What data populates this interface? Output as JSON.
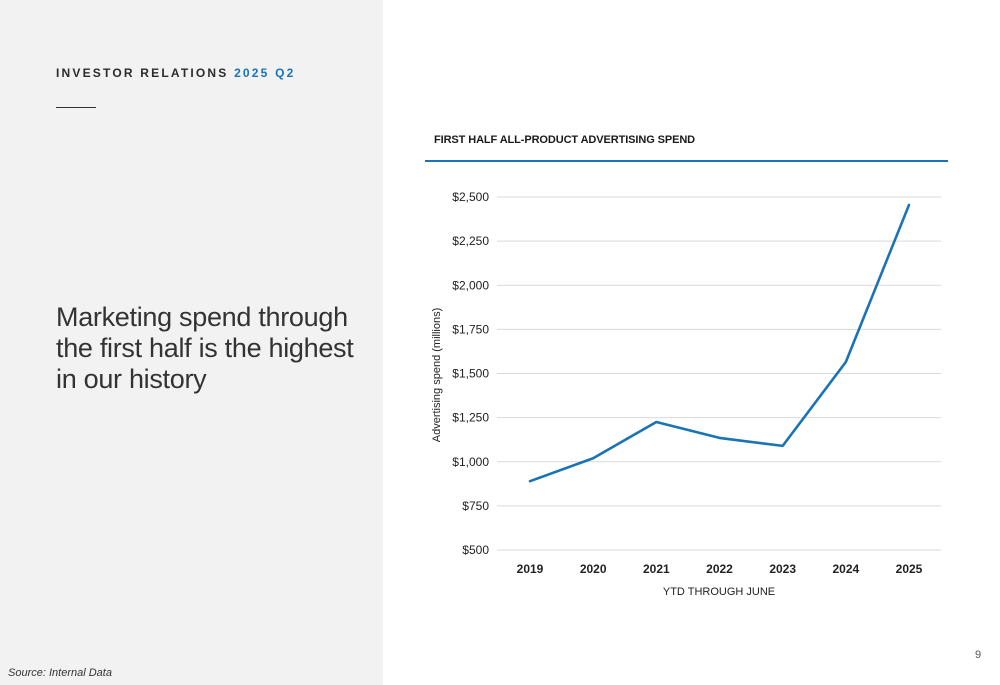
{
  "header": {
    "eyebrow_text": "INVESTOR RELATIONS",
    "eyebrow_accent": "2025 Q2"
  },
  "headline": "Marketing spend through the first half is the highest in our history",
  "footer": {
    "source": "Source: Internal Data",
    "page_number": "9"
  },
  "colors": {
    "accent": "#1a73b5",
    "panel_background": "#f2f2f2",
    "line": "#1a73b5",
    "grid": "#d9d9d9"
  },
  "chart_data": {
    "type": "line",
    "title": "FIRST HALF ALL-PRODUCT ADVERTISING SPEND",
    "xlabel": "YTD THROUGH JUNE",
    "ylabel": "Advertising spend (millions)",
    "categories": [
      "2019",
      "2020",
      "2021",
      "2022",
      "2023",
      "2024",
      "2025"
    ],
    "series": [
      {
        "values": [
          890,
          1020,
          1225,
          1135,
          1090,
          1565,
          2455
        ]
      }
    ],
    "ylim": [
      500,
      2500
    ],
    "yticks": [
      500,
      750,
      1000,
      1250,
      1500,
      1750,
      2000,
      2250,
      2500
    ],
    "ytick_labels": [
      "$500",
      "$750",
      "$1,000",
      "$1,250",
      "$1,500",
      "$1,750",
      "$2,000",
      "$2,250",
      "$2,500"
    ],
    "grid": true,
    "legend": "none"
  }
}
